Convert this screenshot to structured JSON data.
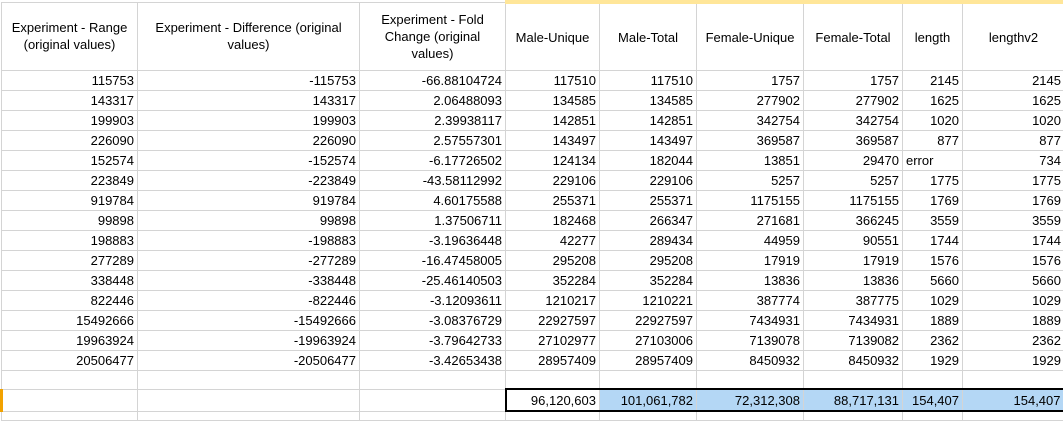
{
  "headers": [
    "Experiment - Range (original values)",
    "Experiment - Difference (original values)",
    "Experiment - Fold Change (original values)",
    "Male-Unique",
    "Male-Total",
    "Female-Unique",
    "Female-Total",
    "length",
    "lengthv2"
  ],
  "rows": [
    [
      "115753",
      "-115753",
      "-66.88104724",
      "117510",
      "117510",
      "1757",
      "1757",
      "2145",
      "2145"
    ],
    [
      "143317",
      "143317",
      "2.06488093",
      "134585",
      "134585",
      "277902",
      "277902",
      "1625",
      "1625"
    ],
    [
      "199903",
      "199903",
      "2.39938117",
      "142851",
      "142851",
      "342754",
      "342754",
      "1020",
      "1020"
    ],
    [
      "226090",
      "226090",
      "2.57557301",
      "143497",
      "143497",
      "369587",
      "369587",
      "877",
      "877"
    ],
    [
      "152574",
      "-152574",
      "-6.17726502",
      "124134",
      "182044",
      "13851",
      "29470",
      "error",
      "734"
    ],
    [
      "223849",
      "-223849",
      "-43.58112992",
      "229106",
      "229106",
      "5257",
      "5257",
      "1775",
      "1775"
    ],
    [
      "919784",
      "919784",
      "4.60175588",
      "255371",
      "255371",
      "1175155",
      "1175155",
      "1769",
      "1769"
    ],
    [
      "99898",
      "99898",
      "1.37506711",
      "182468",
      "266347",
      "271681",
      "366245",
      "3559",
      "3559"
    ],
    [
      "198883",
      "-198883",
      "-3.19636448",
      "42277",
      "289434",
      "44959",
      "90551",
      "1744",
      "1744"
    ],
    [
      "277289",
      "-277289",
      "-16.47458005",
      "295208",
      "295208",
      "17919",
      "17919",
      "1576",
      "1576"
    ],
    [
      "338448",
      "-338448",
      "-25.46140503",
      "352284",
      "352284",
      "13836",
      "13836",
      "5660",
      "5660"
    ],
    [
      "822446",
      "-822446",
      "-3.12093611",
      "1210217",
      "1210221",
      "387774",
      "387775",
      "1029",
      "1029"
    ],
    [
      "15492666",
      "-15492666",
      "-3.08376729",
      "22927597",
      "22927597",
      "7434931",
      "7434931",
      "1889",
      "1889"
    ],
    [
      "19963924",
      "-19963924",
      "-3.79642733",
      "27102977",
      "27103006",
      "7139078",
      "7139082",
      "2362",
      "2362"
    ],
    [
      "20506477",
      "-20506477",
      "-3.42653438",
      "28957409",
      "28957409",
      "8450932",
      "8450932",
      "1929",
      "1929"
    ]
  ],
  "totals": [
    "96,120,603",
    "101,061,782",
    "72,312,308",
    "88,717,131",
    "154,407",
    "154,407"
  ],
  "colors": {
    "header_highlight": "#ffe699",
    "selection_fill": "#b4d7f5",
    "gridline": "#d4d4d4",
    "left_marker": "#f2a200"
  }
}
